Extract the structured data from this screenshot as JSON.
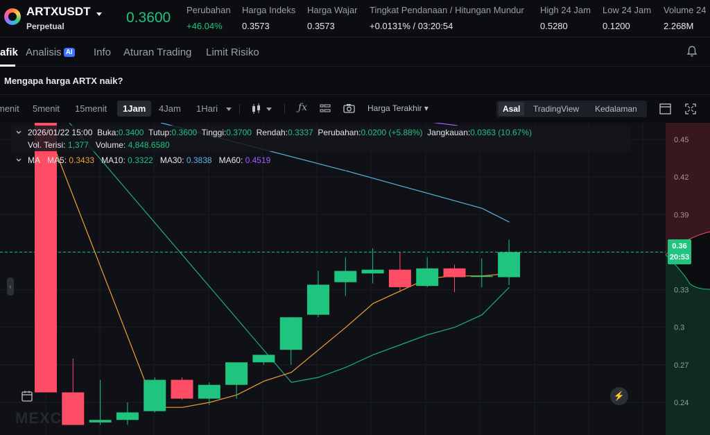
{
  "header": {
    "symbol": "ARTXUSDT",
    "contract_type": "Perpetual",
    "last_price": "0.3600",
    "stats": [
      {
        "label": "Perubahan",
        "value": "+46.04%",
        "up": true
      },
      {
        "label": "Harga Indeks",
        "value": "0.3573"
      },
      {
        "label": "Harga Wajar",
        "value": "0.3573"
      },
      {
        "label": "Tingkat Pendanaan  /  Hitungan Mundur",
        "value": "+0.0131%  /  03:20:54"
      },
      {
        "label": "High 24 Jam",
        "value": "0.5280"
      },
      {
        "label": "Low 24 Jam",
        "value": "0.1200"
      },
      {
        "label": "Volume 24",
        "value": "2.268M"
      }
    ]
  },
  "tabs": {
    "grafik": "afik",
    "analisis": "Analisis",
    "ai_badge": "AI",
    "info": "Info",
    "aturan": "Aturan Trading",
    "limit": "Limit Risiko"
  },
  "question": "Mengapa harga ARTX naik?",
  "toolbar": {
    "timeframes": [
      "menit",
      "5menit",
      "15menit",
      "1Jam",
      "4Jam",
      "1Hari"
    ],
    "active_timeframe": "1Jam",
    "price_type": "Harga Terakhir",
    "views": [
      "Asal",
      "TradingView",
      "Kedalaman"
    ],
    "active_view": "Asal"
  },
  "legend": {
    "date": "2026/01/22 15:00",
    "open_label": "Buka:",
    "open": "0.3400",
    "close_label": "Tutup:",
    "close": "0.3600",
    "high_label": "Tinggi:",
    "high": "0.3700",
    "low_label": "Rendah:",
    "low": "0.3337",
    "change_label": "Perubahan:",
    "change": "0.0200 (+5.88%)",
    "range_label": "Jangkauan:",
    "range": "0.0363 (10.67%)",
    "volt_label": "Vol. Terisi:",
    "volt": "1,377",
    "vol_label": "Volume:",
    "vol": "4,848.6580",
    "ma_label": "MA",
    "ma5_label": "MA5:",
    "ma5": "0.3433",
    "ma10_label": "MA10:",
    "ma10": "0.3322",
    "ma30_label": "MA30:",
    "ma30": "0.3838",
    "ma60_label": "MA60:",
    "ma60": "0.4519"
  },
  "price_tag": {
    "price": "0.36",
    "countdown": "20:53"
  },
  "watermark": "MEXC",
  "colors": {
    "up": "#1fc47e",
    "down": "#ff4d66",
    "ma5": "#f0a030",
    "ma10": "#1fae7a",
    "ma30": "#5ab4e6",
    "ma60": "#a25cff"
  },
  "chart_data": {
    "type": "candlestick",
    "y_ticks": [
      "0.45",
      "0.42",
      "0.39",
      "0.36",
      "0.33",
      "0.3",
      "0.27",
      "0.24"
    ],
    "ylim": [
      0.22,
      0.47
    ],
    "candles": [
      {
        "o": 0.47,
        "h": 0.47,
        "l": 0.248,
        "c": 0.248
      },
      {
        "o": 0.248,
        "h": 0.275,
        "l": 0.222,
        "c": 0.222
      },
      {
        "o": 0.224,
        "h": 0.258,
        "l": 0.222,
        "c": 0.226
      },
      {
        "o": 0.226,
        "h": 0.24,
        "l": 0.222,
        "c": 0.232
      },
      {
        "o": 0.233,
        "h": 0.26,
        "l": 0.232,
        "c": 0.258
      },
      {
        "o": 0.258,
        "h": 0.26,
        "l": 0.242,
        "c": 0.243
      },
      {
        "o": 0.243,
        "h": 0.256,
        "l": 0.238,
        "c": 0.254
      },
      {
        "o": 0.254,
        "h": 0.272,
        "l": 0.243,
        "c": 0.272
      },
      {
        "o": 0.272,
        "h": 0.278,
        "l": 0.27,
        "c": 0.278
      },
      {
        "o": 0.282,
        "h": 0.308,
        "l": 0.27,
        "c": 0.308
      },
      {
        "o": 0.31,
        "h": 0.345,
        "l": 0.308,
        "c": 0.334
      },
      {
        "o": 0.336,
        "h": 0.356,
        "l": 0.325,
        "c": 0.345
      },
      {
        "o": 0.343,
        "h": 0.363,
        "l": 0.335,
        "c": 0.346
      },
      {
        "o": 0.346,
        "h": 0.36,
        "l": 0.328,
        "c": 0.332
      },
      {
        "o": 0.333,
        "h": 0.356,
        "l": 0.332,
        "c": 0.347
      },
      {
        "o": 0.347,
        "h": 0.35,
        "l": 0.328,
        "c": 0.34
      },
      {
        "o": 0.341,
        "h": 0.355,
        "l": 0.332,
        "c": 0.341
      },
      {
        "o": 0.34,
        "h": 0.37,
        "l": 0.3337,
        "c": 0.36
      }
    ],
    "ma5": [
      null,
      null,
      null,
      null,
      0.236,
      0.236,
      0.24,
      0.246,
      0.257,
      0.264,
      0.282,
      0.3,
      0.319,
      0.329,
      0.339,
      0.341,
      0.341,
      0.343
    ],
    "ma10": [
      null,
      null,
      null,
      null,
      null,
      null,
      null,
      null,
      null,
      0.256,
      0.26,
      0.268,
      0.278,
      0.286,
      0.294,
      0.3,
      0.31,
      0.332
    ],
    "ma30": [
      null,
      null,
      null,
      null,
      null,
      null,
      null,
      null,
      null,
      null,
      null,
      0.425,
      0.419,
      0.413,
      0.407,
      0.401,
      0.395,
      0.384
    ],
    "ma60": [
      null,
      null,
      null,
      null,
      null,
      null,
      null,
      null,
      null,
      null,
      null,
      null,
      null,
      0.472,
      0.468,
      0.462,
      0.456,
      0.452
    ]
  }
}
